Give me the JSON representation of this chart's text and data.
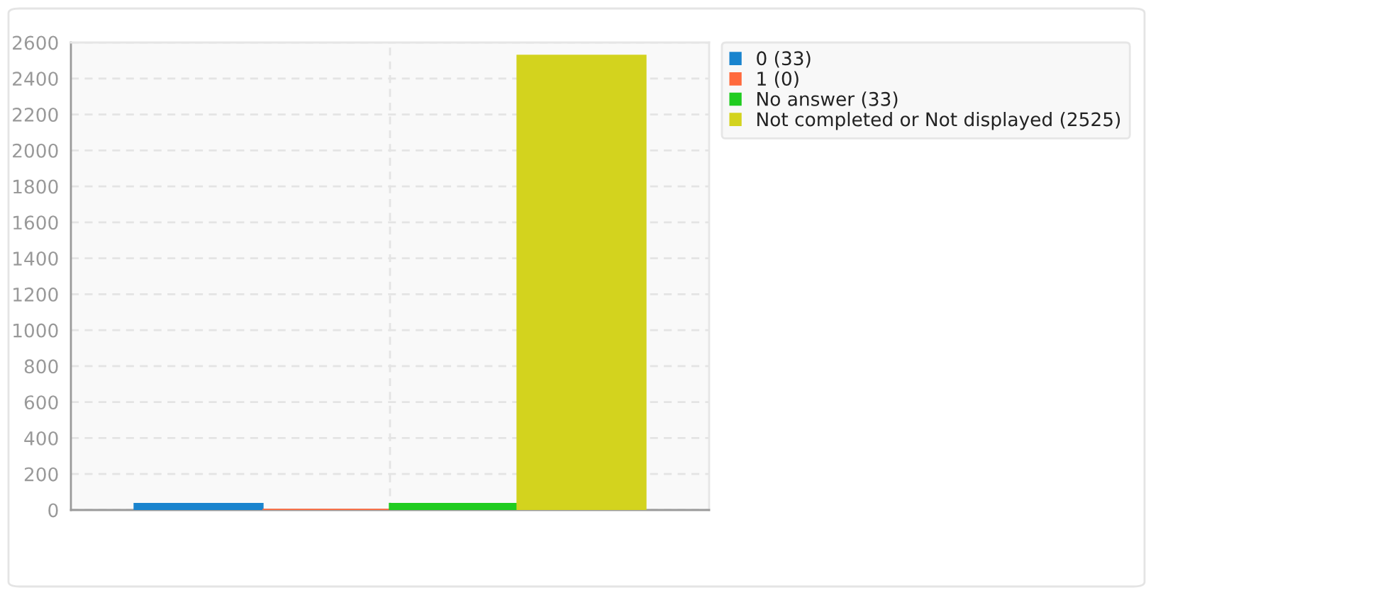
{
  "chart_data": {
    "type": "bar",
    "categories": [
      null
    ],
    "series": [
      {
        "name": "0 (33)",
        "color": "#1a84ce",
        "values": [
          33
        ]
      },
      {
        "name": "1 (0)",
        "color": "#ff6a3d",
        "values": [
          0
        ]
      },
      {
        "name": "No answer (33)",
        "color": "#20cc20",
        "values": [
          33
        ]
      },
      {
        "name": "Not completed or Not displayed (2525)",
        "color": "#d3d31e",
        "values": [
          2525
        ]
      }
    ],
    "ylim": [
      0,
      2600
    ],
    "yticks": [
      0,
      200,
      400,
      600,
      800,
      1000,
      1200,
      1400,
      1600,
      1800,
      2000,
      2200,
      2400,
      2600
    ],
    "grid": true,
    "legend": "right",
    "tick_labels": "y"
  }
}
